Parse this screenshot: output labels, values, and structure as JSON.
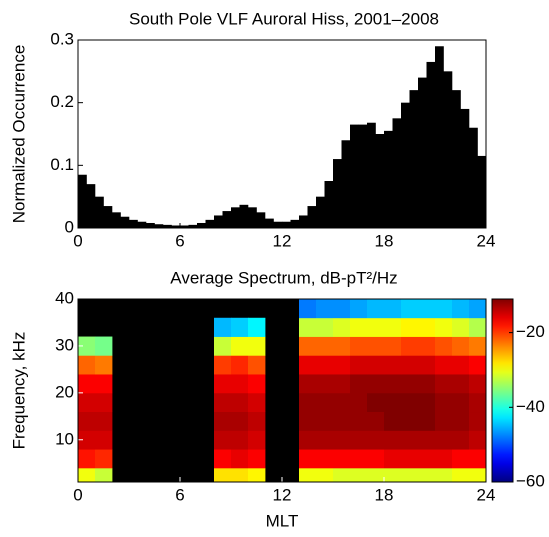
{
  "chart_data": [
    {
      "type": "histogram",
      "title": "South Pole VLF Auroral Hiss, 2001–2008",
      "ylabel": "Normalized Occurrence",
      "bins": [
        0,
        0.5,
        1,
        1.5,
        2,
        2.5,
        3,
        3.5,
        4,
        4.5,
        5,
        5.5,
        6,
        6.5,
        7,
        7.5,
        8,
        8.5,
        9,
        9.5,
        10,
        10.5,
        11,
        11.5,
        12,
        12.5,
        13,
        13.5,
        14,
        14.5,
        15,
        15.5,
        16,
        16.5,
        17,
        17.5,
        18,
        18.5,
        19,
        19.5,
        20,
        20.5,
        21,
        21.5,
        22,
        22.5,
        23,
        23.5,
        24
      ],
      "values": [
        0.085,
        0.07,
        0.05,
        0.035,
        0.025,
        0.018,
        0.013,
        0.01,
        0.008,
        0.006,
        0.005,
        0.004,
        0.004,
        0.005,
        0.008,
        0.013,
        0.02,
        0.027,
        0.033,
        0.037,
        0.033,
        0.025,
        0.015,
        0.01,
        0.01,
        0.013,
        0.02,
        0.035,
        0.05,
        0.075,
        0.11,
        0.14,
        0.165,
        0.165,
        0.168,
        0.15,
        0.155,
        0.175,
        0.2,
        0.22,
        0.24,
        0.265,
        0.29,
        0.25,
        0.22,
        0.19,
        0.16,
        0.115
      ],
      "color": "#000000",
      "xlim": [
        0,
        24
      ],
      "xticks": [
        0,
        6,
        12,
        18,
        24
      ],
      "ylim": [
        0,
        0.3
      ],
      "yticks": [
        0,
        0.1,
        0.2,
        0.3
      ]
    },
    {
      "type": "heatmap",
      "title": "Average Spectrum, dB-pT²/Hz",
      "xlabel": "MLT",
      "ylabel": "Frequency, kHz",
      "x_bins": [
        0,
        1,
        2,
        3,
        4,
        5,
        6,
        7,
        8,
        9,
        10,
        11,
        12,
        13,
        14,
        15,
        16,
        17,
        18,
        19,
        20,
        21,
        22,
        23,
        24
      ],
      "y_bins": [
        1,
        4,
        8,
        12,
        16,
        20,
        24,
        28,
        32,
        36,
        40
      ],
      "z": [
        [
          -30,
          -18,
          -15,
          -14,
          -15,
          -17,
          -22,
          -35,
          null,
          null
        ],
        [
          -32,
          -19,
          -15,
          -14,
          -15,
          -17,
          -23,
          -36,
          null,
          null
        ],
        [
          null,
          null,
          null,
          null,
          null,
          null,
          null,
          null,
          null,
          null
        ],
        [
          null,
          null,
          null,
          null,
          null,
          null,
          null,
          null,
          null,
          null
        ],
        [
          null,
          null,
          null,
          null,
          null,
          null,
          null,
          null,
          null,
          null
        ],
        [
          null,
          null,
          null,
          null,
          null,
          null,
          null,
          null,
          null,
          null
        ],
        [
          null,
          null,
          null,
          null,
          null,
          null,
          null,
          null,
          null,
          null
        ],
        [
          null,
          null,
          null,
          null,
          null,
          null,
          null,
          null,
          null,
          null
        ],
        [
          -28,
          -17,
          -14,
          -13,
          -14,
          -16,
          -20,
          -32,
          -45,
          null
        ],
        [
          -28,
          -16,
          -14,
          -13,
          -14,
          -16,
          -19,
          -30,
          -44,
          null
        ],
        [
          -29,
          -17,
          -15,
          -14,
          -15,
          -17,
          -21,
          -30,
          -42,
          null
        ],
        [
          null,
          null,
          null,
          null,
          null,
          null,
          null,
          null,
          null,
          null
        ],
        [
          null,
          null,
          null,
          null,
          null,
          null,
          null,
          null,
          null,
          null
        ],
        [
          -30,
          -17,
          -13,
          -12,
          -12,
          -13,
          -16,
          -22,
          -32,
          -48
        ],
        [
          -30,
          -17,
          -13,
          -12,
          -12,
          -13,
          -16,
          -22,
          -32,
          -47
        ],
        [
          -31,
          -17,
          -13,
          -12,
          -12,
          -13,
          -16,
          -22,
          -31,
          -47
        ],
        [
          -31,
          -17,
          -13,
          -12,
          -12,
          -12,
          -15,
          -21,
          -30,
          -46
        ],
        [
          -31,
          -17,
          -13,
          -12,
          -11,
          -12,
          -15,
          -21,
          -30,
          -45
        ],
        [
          -31,
          -16,
          -13,
          -11,
          -11,
          -12,
          -15,
          -21,
          -30,
          -45
        ],
        [
          -31,
          -16,
          -13,
          -11,
          -11,
          -12,
          -15,
          -20,
          -29,
          -44
        ],
        [
          -31,
          -16,
          -13,
          -11,
          -11,
          -12,
          -15,
          -20,
          -29,
          -44
        ],
        [
          -31,
          -16,
          -13,
          -12,
          -12,
          -13,
          -16,
          -21,
          -30,
          -44
        ],
        [
          -30,
          -17,
          -13,
          -12,
          -12,
          -13,
          -16,
          -22,
          -31,
          -45
        ],
        [
          -30,
          -17,
          -14,
          -13,
          -13,
          -14,
          -17,
          -23,
          -33,
          -46
        ]
      ],
      "colormap": "jet",
      "clim": [
        -60,
        -11
      ],
      "cticks": [
        {
          "value": -20,
          "label": "−20"
        },
        {
          "value": -40,
          "label": "−40"
        },
        {
          "value": -60,
          "label": "−60"
        }
      ],
      "missing_color": "#000000",
      "xlim": [
        0,
        24
      ],
      "xticks": [
        0,
        6,
        12,
        18,
        24
      ],
      "ylim": [
        1,
        40
      ],
      "yticks": [
        10,
        20,
        30,
        40
      ]
    }
  ]
}
